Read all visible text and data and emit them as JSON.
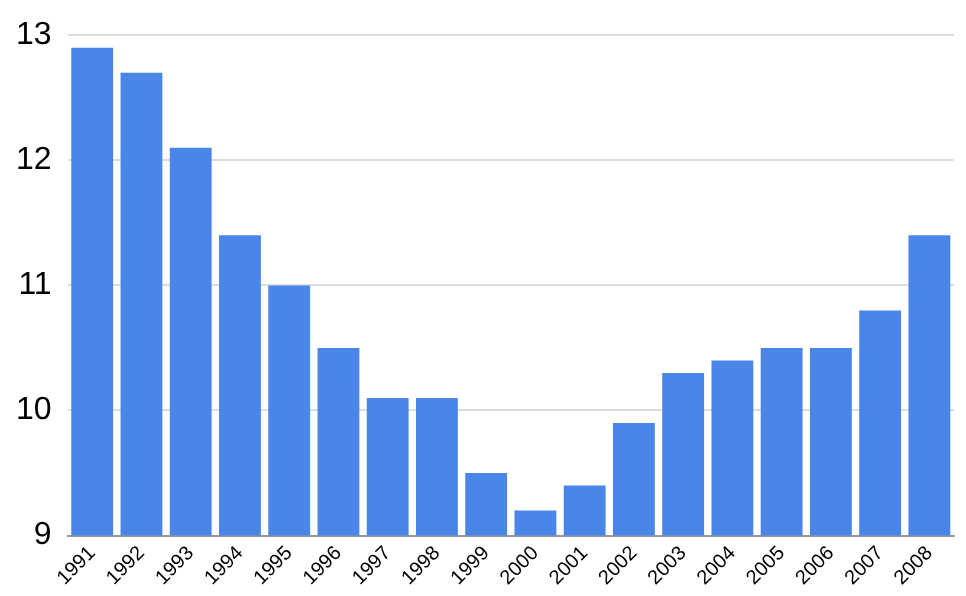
{
  "chart_data": {
    "type": "bar",
    "categories": [
      "1991",
      "1992",
      "1993",
      "1994",
      "1995",
      "1996",
      "1997",
      "1998",
      "1999",
      "2000",
      "2001",
      "2002",
      "2003",
      "2004",
      "2005",
      "2006",
      "2007",
      "2008"
    ],
    "values": [
      12.9,
      12.7,
      12.1,
      11.4,
      11.0,
      10.5,
      10.1,
      10.1,
      9.5,
      9.2,
      9.4,
      9.9,
      10.3,
      10.4,
      10.5,
      10.5,
      10.8,
      11.4
    ],
    "color": "#4a86e8",
    "ylim": [
      9,
      13
    ],
    "yticks": [
      9,
      10,
      11,
      12,
      13
    ],
    "grid": "y"
  }
}
